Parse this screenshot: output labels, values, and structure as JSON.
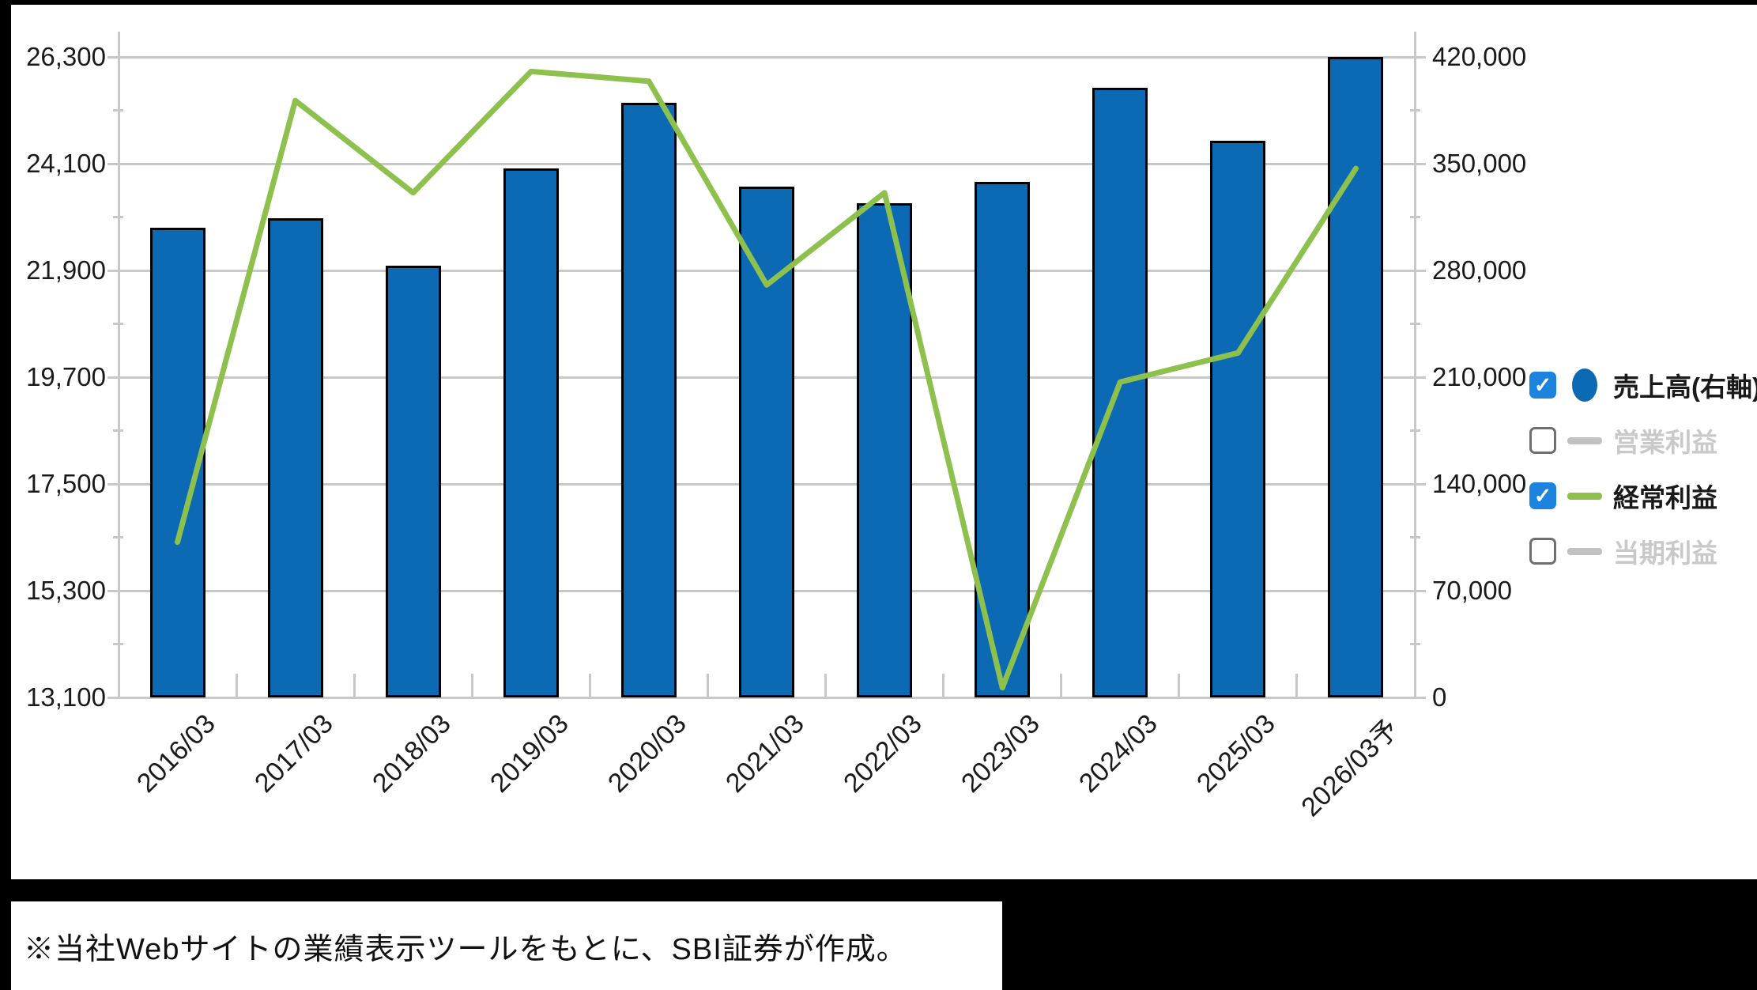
{
  "chart_data": {
    "type": "combo",
    "categories": [
      "2016/03",
      "2017/03",
      "2018/03",
      "2019/03",
      "2020/03",
      "2021/03",
      "2022/03",
      "2023/03",
      "2024/03",
      "2025/03",
      "2026/03予"
    ],
    "series": [
      {
        "name": "売上高(右軸)",
        "kind": "bar",
        "axis": "right",
        "color": "#0b6ab3",
        "visible": true,
        "values": [
          308000,
          314000,
          283000,
          347000,
          390000,
          335000,
          324000,
          338000,
          400000,
          365000,
          420000
        ]
      },
      {
        "name": "営業利益",
        "kind": "line",
        "axis": "left",
        "color": "#c2c2c2",
        "visible": false,
        "values": []
      },
      {
        "name": "経常利益",
        "kind": "line",
        "axis": "left",
        "color": "#8ec04e",
        "visible": true,
        "values": [
          16300,
          25400,
          23500,
          26000,
          25800,
          21600,
          23500,
          13300,
          19600,
          20200,
          24000
        ]
      },
      {
        "name": "当期利益",
        "kind": "line",
        "axis": "left",
        "color": "#c2c2c2",
        "visible": false,
        "values": []
      }
    ],
    "left_axis": {
      "min": 13100,
      "max": 26300,
      "tick_values": [
        26300,
        24100,
        21900,
        19700,
        17500,
        15300,
        13100
      ],
      "tick_labels": [
        "26,300",
        "24,100",
        "21,900",
        "19,700",
        "17,500",
        "15,300",
        "13,100"
      ]
    },
    "right_axis": {
      "min": 0,
      "max": 420000,
      "tick_values": [
        420000,
        350000,
        280000,
        210000,
        140000,
        70000,
        0
      ],
      "tick_labels": [
        "420,000",
        "350,000",
        "280,000",
        "210,000",
        "140,000",
        "70,000",
        "0"
      ]
    },
    "grid": true,
    "legend_position": "right"
  },
  "legend": {
    "items": [
      {
        "label": "売上高(右軸)",
        "checked": true,
        "swatch": "circle",
        "swatch_color": "#0b6ab3",
        "label_color": "#1a1a1a"
      },
      {
        "label": "営業利益",
        "checked": false,
        "swatch": "dash",
        "swatch_color": "#c2c2c2",
        "label_color": "#c9c9c9"
      },
      {
        "label": "経常利益",
        "checked": true,
        "swatch": "dash",
        "swatch_color": "#8ec04e",
        "label_color": "#1a1a1a"
      },
      {
        "label": "当期利益",
        "checked": false,
        "swatch": "dash",
        "swatch_color": "#c2c2c2",
        "label_color": "#c9c9c9"
      }
    ]
  },
  "footer": {
    "note": "※当社Webサイトの業績表示ツールをもとに、SBI証券が作成。"
  },
  "colors": {
    "grid": "#c8c8c8",
    "axis_text": "#1a1a1a",
    "checkbox_checked": "#1c83de",
    "bar_border": "#000000",
    "panel_bg": "#ffffff",
    "frame_bg": "#000000"
  }
}
